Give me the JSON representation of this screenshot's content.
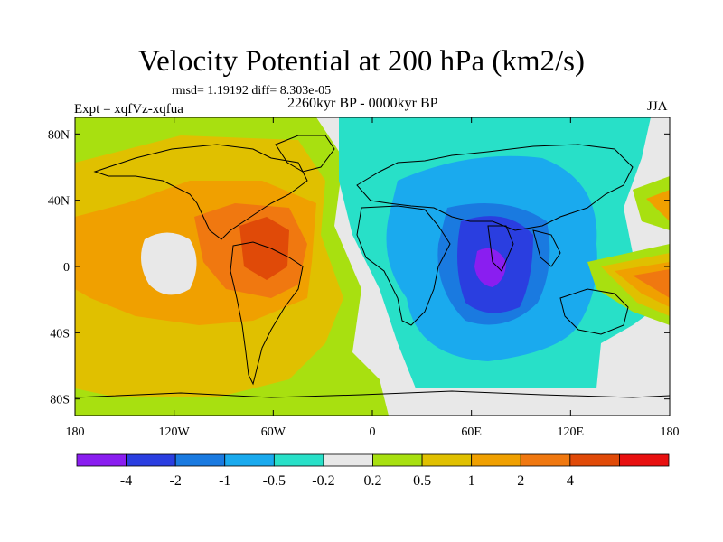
{
  "title": "Velocity Potential at 200 hPa (km2/s)",
  "stats": "rmsd= 1.19192 diff= 8.303e-05",
  "experiment": "Expt = xqfVz-xqfua",
  "period": "2260kyr BP - 0000kyr BP",
  "season": "JJA",
  "axes": {
    "lon_ticks": [
      {
        "value": -180,
        "label": "180"
      },
      {
        "value": -120,
        "label": "120W"
      },
      {
        "value": -60,
        "label": "60W"
      },
      {
        "value": 0,
        "label": "0"
      },
      {
        "value": 60,
        "label": "60E"
      },
      {
        "value": 120,
        "label": "120E"
      },
      {
        "value": 180,
        "label": "180"
      }
    ],
    "lat_ticks": [
      {
        "value": 80,
        "label": "80N"
      },
      {
        "value": 40,
        "label": "40N"
      },
      {
        "value": 0,
        "label": "0"
      },
      {
        "value": -40,
        "label": "40S"
      },
      {
        "value": -80,
        "label": "80S"
      }
    ],
    "lon_range": [
      -180,
      180
    ],
    "lat_range": [
      -90,
      90
    ]
  },
  "colorbar": {
    "colors": [
      "#8a1ef0",
      "#2a3ee0",
      "#1a7ae0",
      "#1aaaee",
      "#28e0c8",
      "#e8e8e8",
      "#a8e010",
      "#e0c000",
      "#f0a000",
      "#f07810",
      "#e04a08",
      "#e81010"
    ],
    "labels": [
      "-4",
      "-2",
      "-1",
      "-0.5",
      "-0.2",
      "0.2",
      "0.5",
      "1",
      "2",
      "4"
    ]
  },
  "chart_data": {
    "type": "heatmap",
    "title": "Velocity Potential at 200 hPa (km2/s)",
    "contour_levels": [
      -4,
      -2,
      -1,
      -0.5,
      -0.2,
      0.2,
      0.5,
      1,
      2,
      4
    ],
    "features": [
      {
        "name": "positive anomaly, Americas / Pacific",
        "center_lon": -65,
        "center_lat": 5,
        "peak_level": 4
      },
      {
        "name": "negative anomaly, Indian Ocean",
        "center_lon": 75,
        "center_lat": 0,
        "peak_level": -4
      },
      {
        "name": "positive anomaly, West Pacific",
        "center_lon": 165,
        "center_lat": 5,
        "peak_level": 2
      }
    ]
  }
}
